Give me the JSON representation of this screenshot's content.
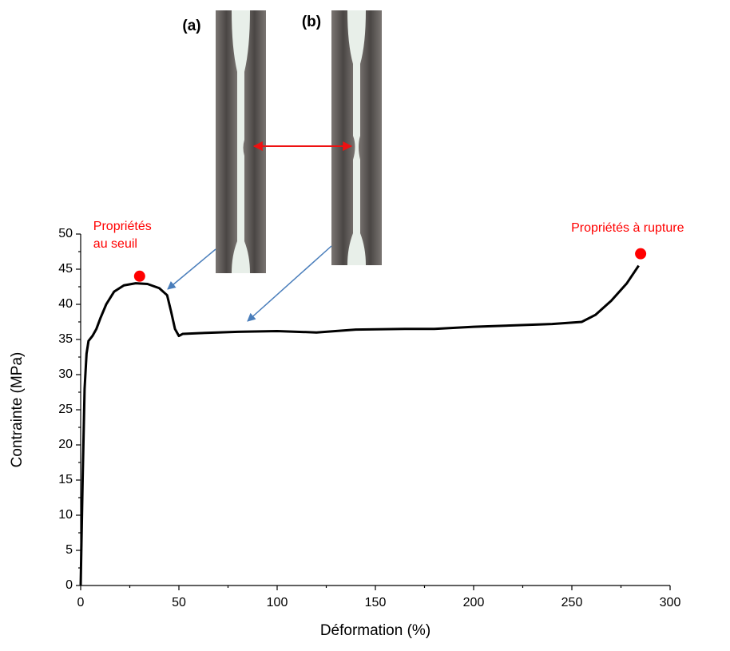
{
  "chart_data": {
    "type": "line",
    "xlabel": "Déformation (%)",
    "ylabel": "Contrainte (MPa)",
    "x": [
      0,
      1,
      2,
      3,
      4,
      6,
      8,
      10,
      13,
      17,
      22,
      28,
      34,
      40,
      44,
      46,
      48,
      50,
      52,
      60,
      80,
      100,
      120,
      140,
      165,
      180,
      200,
      220,
      240,
      255,
      262,
      270,
      278,
      284
    ],
    "series": [
      {
        "color": "#000000",
        "values": [
          0,
          15,
          28,
          33,
          34.8,
          35.5,
          36.5,
          38,
          40,
          41.8,
          42.7,
          43,
          42.9,
          42.3,
          41.3,
          39,
          36.5,
          35.5,
          35.8,
          35.9,
          36.1,
          36.2,
          36,
          36.4,
          36.5,
          36.5,
          36.8,
          37,
          37.2,
          37.5,
          38.5,
          40.5,
          43,
          45.5
        ]
      }
    ],
    "points": [
      {
        "x": 30,
        "y": 44,
        "label": [
          "Propriétés",
          "au seuil"
        ]
      },
      {
        "x": 285,
        "y": 47.2,
        "label": [
          "Propriétés à rupture"
        ]
      }
    ],
    "point_color": "#ff0000",
    "xlim": [
      0,
      300
    ],
    "xticks": [
      0,
      50,
      100,
      150,
      200,
      250,
      300
    ],
    "xminor": [
      25,
      75,
      125,
      175,
      225,
      275
    ],
    "ylim": [
      0,
      50
    ],
    "yticks": [
      0,
      5,
      10,
      15,
      20,
      25,
      30,
      35,
      40,
      45,
      50
    ],
    "yminor": [
      2.5,
      7.5,
      12.5,
      17.5,
      22.5,
      27.5,
      32.5,
      37.5,
      42.5,
      47.5
    ],
    "insets": [
      "(a)",
      "(b)"
    ]
  }
}
